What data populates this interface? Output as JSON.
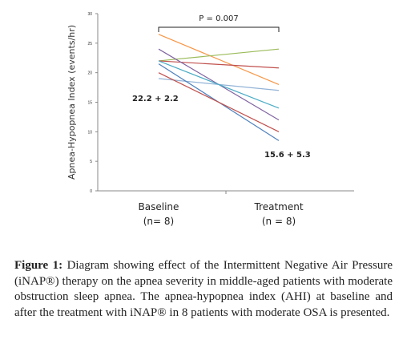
{
  "chart_data": {
    "type": "line",
    "ylabel": "Apnea-Hypopnea Index (events/hr)",
    "ylim": [
      0,
      30
    ],
    "yticks": [
      0,
      5,
      10,
      15,
      20,
      25,
      30
    ],
    "categories": [
      "Baseline",
      "Treatment"
    ],
    "category_sublabels": [
      "(n= 8)",
      "(n = 8)"
    ],
    "series": [
      {
        "values": [
          26.5,
          18.0
        ],
        "color": "#F79646"
      },
      {
        "values": [
          22.0,
          24.0
        ],
        "color": "#9BBB59"
      },
      {
        "values": [
          22.0,
          20.8
        ],
        "color": "#C0504D"
      },
      {
        "values": [
          19.0,
          17.0
        ],
        "color": "#93B3D7"
      },
      {
        "values": [
          24.0,
          12.0
        ],
        "color": "#8064A2"
      },
      {
        "values": [
          22.0,
          14.0
        ],
        "color": "#4BACC6"
      },
      {
        "values": [
          21.5,
          8.5
        ],
        "color": "#4F81BD"
      },
      {
        "values": [
          20.0,
          10.0
        ],
        "color": "#C0504D"
      }
    ],
    "annotations": {
      "baseline_label": "22.2 + 2.2",
      "treatment_label": "15.6 + 5.3",
      "p_value": "P = 0.007"
    },
    "grid": false
  },
  "caption": {
    "label": "Figure 1:",
    "text": " Diagram showing effect of the Intermittent Negative Air Pressure (iNAP®) therapy on the apnea severity in middle-aged patients with moderate obstruction sleep apnea. The apnea-hypopnea index (AHI) at baseline and after the treatment with iNAP® in 8 patients with moderate OSA is presented."
  }
}
